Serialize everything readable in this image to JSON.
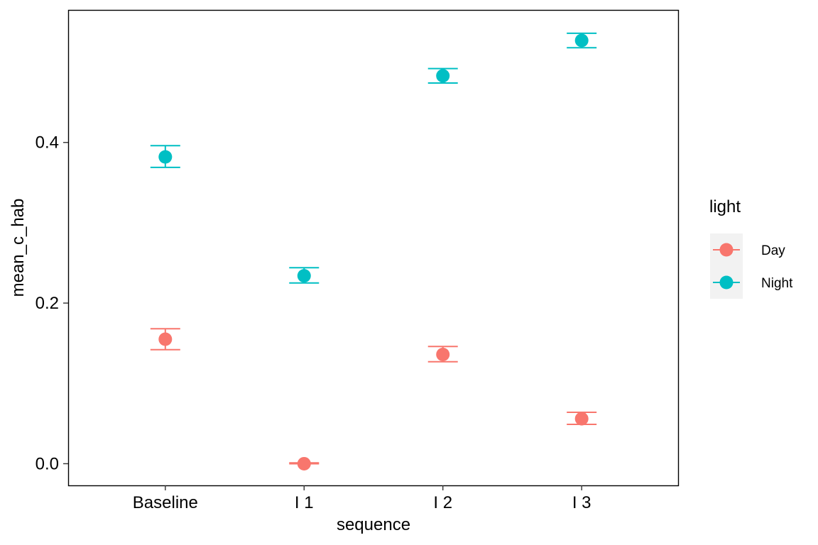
{
  "chart_data": {
    "type": "scatter",
    "title": "",
    "xlabel": "sequence",
    "ylabel": "mean_c_hab",
    "categories": [
      "Baseline",
      "I 1",
      "I 2",
      "I 3"
    ],
    "ylim": [
      -0.027,
      0.565
    ],
    "y_ticks": [
      {
        "value": 0.0,
        "label": "0.0"
      },
      {
        "value": 0.2,
        "label": "0.2"
      },
      {
        "value": 0.4,
        "label": "0.4"
      }
    ],
    "grid": false,
    "legend": {
      "title": "light",
      "position": "right"
    },
    "series": [
      {
        "name": "Day",
        "color": "#F8766D",
        "values": [
          0.155,
          0.0,
          0.136,
          0.056
        ],
        "lower": [
          0.142,
          0.0,
          0.127,
          0.049
        ],
        "upper": [
          0.168,
          0.001,
          0.146,
          0.064
        ]
      },
      {
        "name": "Night",
        "color": "#00BFC4",
        "values": [
          0.382,
          0.234,
          0.483,
          0.527
        ],
        "lower": [
          0.369,
          0.225,
          0.474,
          0.518
        ],
        "upper": [
          0.396,
          0.244,
          0.492,
          0.536
        ]
      }
    ]
  }
}
